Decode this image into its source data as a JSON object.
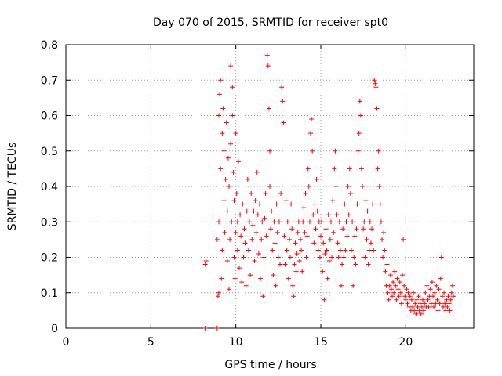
{
  "chart_data": {
    "type": "scatter",
    "title": "Day 070 of 2015, SRMTID for receiver spt0",
    "xlabel": "GPS time / hours",
    "ylabel": "SRMTID / TECUs",
    "xlim": [
      0,
      24.0
    ],
    "ylim": [
      0,
      0.8
    ],
    "x_ticks": [
      0,
      5,
      10,
      15,
      20
    ],
    "x_tick_labels": [
      "0",
      "5",
      "10",
      "15",
      "20"
    ],
    "y_ticks": [
      0,
      0.1,
      0.2,
      0.3,
      0.4,
      0.5,
      0.6,
      0.7,
      0.8
    ],
    "y_tick_labels": [
      "0",
      "0.1",
      "0.2",
      "0.3",
      "0.4",
      "0.5",
      "0.6",
      "0.7",
      "0.8"
    ],
    "grid": true,
    "marker": "plus",
    "color": "#ff0000",
    "series": [
      {
        "name": "spt0",
        "points": [
          [
            8.2,
            0.0
          ],
          [
            8.2,
            0.18
          ],
          [
            8.25,
            0.19
          ],
          [
            8.9,
            0.0
          ],
          [
            8.9,
            0.25
          ],
          [
            8.95,
            0.09
          ],
          [
            9.0,
            0.1
          ],
          [
            9.0,
            0.3
          ],
          [
            9.0,
            0.6
          ],
          [
            9.05,
            0.66
          ],
          [
            9.1,
            0.7
          ],
          [
            9.1,
            0.45
          ],
          [
            9.15,
            0.14
          ],
          [
            9.2,
            0.22
          ],
          [
            9.2,
            0.55
          ],
          [
            9.25,
            0.62
          ],
          [
            9.3,
            0.5
          ],
          [
            9.3,
            0.36
          ],
          [
            9.35,
            0.27
          ],
          [
            9.4,
            0.42
          ],
          [
            9.45,
            0.58
          ],
          [
            9.5,
            0.19
          ],
          [
            9.5,
            0.33
          ],
          [
            9.55,
            0.48
          ],
          [
            9.6,
            0.4
          ],
          [
            9.6,
            0.11
          ],
          [
            9.65,
            0.25
          ],
          [
            9.7,
            0.74
          ],
          [
            9.7,
            0.52
          ],
          [
            9.75,
            0.3
          ],
          [
            9.8,
            0.68
          ],
          [
            9.8,
            0.6
          ],
          [
            9.85,
            0.44
          ],
          [
            9.9,
            0.2
          ],
          [
            9.9,
            0.36
          ],
          [
            9.95,
            0.14
          ],
          [
            10.0,
            0.27
          ],
          [
            10.0,
            0.55
          ],
          [
            10.05,
            0.38
          ],
          [
            10.1,
            0.22
          ],
          [
            10.1,
            0.3
          ],
          [
            10.15,
            0.47
          ],
          [
            10.2,
            0.17
          ],
          [
            10.25,
            0.32
          ],
          [
            10.3,
            0.26
          ],
          [
            10.35,
            0.13
          ],
          [
            10.4,
            0.35
          ],
          [
            10.45,
            0.2
          ],
          [
            10.5,
            0.28
          ],
          [
            10.55,
            0.24
          ],
          [
            10.6,
            0.12
          ],
          [
            10.65,
            0.33
          ],
          [
            10.7,
            0.42
          ],
          [
            10.75,
            0.22
          ],
          [
            10.8,
            0.3
          ],
          [
            10.85,
            0.15
          ],
          [
            10.9,
            0.38
          ],
          [
            10.95,
            0.25
          ],
          [
            11.0,
            0.29
          ],
          [
            11.05,
            0.33
          ],
          [
            11.1,
            0.19
          ],
          [
            11.15,
            0.36
          ],
          [
            11.2,
            0.27
          ],
          [
            11.25,
            0.44
          ],
          [
            11.3,
            0.32
          ],
          [
            11.35,
            0.21
          ],
          [
            11.4,
            0.35
          ],
          [
            11.45,
            0.14
          ],
          [
            11.5,
            0.25
          ],
          [
            11.55,
            0.3
          ],
          [
            11.6,
            0.09
          ],
          [
            11.65,
            0.2
          ],
          [
            11.7,
            0.31
          ],
          [
            11.75,
            0.38
          ],
          [
            11.8,
            0.26
          ],
          [
            11.85,
            0.77
          ],
          [
            11.9,
            0.74
          ],
          [
            11.95,
            0.62
          ],
          [
            12.0,
            0.5
          ],
          [
            12.0,
            0.4
          ],
          [
            12.05,
            0.28
          ],
          [
            12.1,
            0.33
          ],
          [
            12.15,
            0.22
          ],
          [
            12.2,
            0.15
          ],
          [
            12.25,
            0.3
          ],
          [
            12.3,
            0.24
          ],
          [
            12.35,
            0.12
          ],
          [
            12.4,
            0.35
          ],
          [
            12.45,
            0.27
          ],
          [
            12.5,
            0.2
          ],
          [
            12.55,
            0.3
          ],
          [
            12.6,
            0.18
          ],
          [
            12.65,
            0.38
          ],
          [
            12.7,
            0.68
          ],
          [
            12.75,
            0.64
          ],
          [
            12.8,
            0.58
          ],
          [
            12.85,
            0.26
          ],
          [
            12.9,
            0.18
          ],
          [
            12.95,
            0.36
          ],
          [
            13.0,
            0.22
          ],
          [
            13.05,
            0.3
          ],
          [
            13.1,
            0.14
          ],
          [
            13.15,
            0.25
          ],
          [
            13.2,
            0.2
          ],
          [
            13.25,
            0.35
          ],
          [
            13.3,
            0.28
          ],
          [
            13.35,
            0.12
          ],
          [
            13.4,
            0.09
          ],
          [
            13.45,
            0.18
          ],
          [
            13.5,
            0.24
          ],
          [
            13.55,
            0.16
          ],
          [
            13.6,
            0.21
          ],
          [
            13.65,
            0.27
          ],
          [
            13.7,
            0.3
          ],
          [
            13.75,
            0.19
          ],
          [
            13.8,
            0.25
          ],
          [
            13.85,
            0.22
          ],
          [
            13.9,
            0.16
          ],
          [
            13.95,
            0.3
          ],
          [
            14.0,
            0.34
          ],
          [
            14.05,
            0.27
          ],
          [
            14.1,
            0.38
          ],
          [
            14.15,
            0.2
          ],
          [
            14.2,
            0.26
          ],
          [
            14.25,
            0.45
          ],
          [
            14.3,
            0.4
          ],
          [
            14.35,
            0.3
          ],
          [
            14.4,
            0.55
          ],
          [
            14.45,
            0.59
          ],
          [
            14.5,
            0.5
          ],
          [
            14.55,
            0.32
          ],
          [
            14.6,
            0.24
          ],
          [
            14.65,
            0.35
          ],
          [
            14.7,
            0.28
          ],
          [
            14.75,
            0.42
          ],
          [
            14.8,
            0.33
          ],
          [
            14.85,
            0.22
          ],
          [
            14.9,
            0.3
          ],
          [
            14.95,
            0.2
          ],
          [
            15.0,
            0.26
          ],
          [
            15.05,
            0.3
          ],
          [
            15.1,
            0.16
          ],
          [
            15.15,
            0.24
          ],
          [
            15.2,
            0.08
          ],
          [
            15.25,
            0.21
          ],
          [
            15.3,
            0.28
          ],
          [
            15.35,
            0.22
          ],
          [
            15.4,
            0.14
          ],
          [
            15.45,
            0.32
          ],
          [
            15.5,
            0.19
          ],
          [
            15.55,
            0.25
          ],
          [
            15.6,
            0.3
          ],
          [
            15.65,
            0.2
          ],
          [
            15.7,
            0.36
          ],
          [
            15.75,
            0.27
          ],
          [
            15.8,
            0.45
          ],
          [
            15.85,
            0.5
          ],
          [
            15.9,
            0.4
          ],
          [
            15.95,
            0.32
          ],
          [
            16.0,
            0.24
          ],
          [
            16.05,
            0.2
          ],
          [
            16.1,
            0.3
          ],
          [
            16.15,
            0.22
          ],
          [
            16.2,
            0.12
          ],
          [
            16.25,
            0.18
          ],
          [
            16.3,
            0.28
          ],
          [
            16.35,
            0.2
          ],
          [
            16.4,
            0.35
          ],
          [
            16.45,
            0.22
          ],
          [
            16.5,
            0.3
          ],
          [
            16.55,
            0.26
          ],
          [
            16.6,
            0.4
          ],
          [
            16.65,
            0.32
          ],
          [
            16.7,
            0.45
          ],
          [
            16.75,
            0.38
          ],
          [
            16.8,
            0.22
          ],
          [
            16.85,
            0.3
          ],
          [
            16.9,
            0.12
          ],
          [
            16.95,
            0.2
          ],
          [
            17.0,
            0.26
          ],
          [
            17.05,
            0.18
          ],
          [
            17.1,
            0.28
          ],
          [
            17.15,
            0.35
          ],
          [
            17.2,
            0.5
          ],
          [
            17.25,
            0.55
          ],
          [
            17.3,
            0.64
          ],
          [
            17.35,
            0.6
          ],
          [
            17.4,
            0.45
          ],
          [
            17.45,
            0.4
          ],
          [
            17.5,
            0.28
          ],
          [
            17.55,
            0.3
          ],
          [
            17.6,
            0.2
          ],
          [
            17.65,
            0.36
          ],
          [
            17.7,
            0.25
          ],
          [
            17.75,
            0.33
          ],
          [
            17.8,
            0.18
          ],
          [
            17.85,
            0.22
          ],
          [
            17.9,
            0.3
          ],
          [
            17.95,
            0.24
          ],
          [
            18.0,
            0.28
          ],
          [
            18.05,
            0.35
          ],
          [
            18.1,
            0.22
          ],
          [
            18.15,
            0.7
          ],
          [
            18.2,
            0.69
          ],
          [
            18.25,
            0.68
          ],
          [
            18.3,
            0.62
          ],
          [
            18.35,
            0.45
          ],
          [
            18.4,
            0.5
          ],
          [
            18.45,
            0.4
          ],
          [
            18.5,
            0.35
          ],
          [
            18.55,
            0.3
          ],
          [
            18.6,
            0.25
          ],
          [
            18.65,
            0.2
          ],
          [
            18.7,
            0.27
          ],
          [
            18.75,
            0.22
          ],
          [
            18.8,
            0.16
          ],
          [
            18.85,
            0.12
          ],
          [
            18.9,
            0.18
          ],
          [
            18.95,
            0.1
          ],
          [
            19.0,
            0.08
          ],
          [
            19.05,
            0.12
          ],
          [
            19.1,
            0.15
          ],
          [
            19.15,
            0.11
          ],
          [
            19.2,
            0.09
          ],
          [
            19.25,
            0.13
          ],
          [
            19.3,
            0.1
          ],
          [
            19.35,
            0.16
          ],
          [
            19.4,
            0.12
          ],
          [
            19.45,
            0.08
          ],
          [
            19.5,
            0.14
          ],
          [
            19.55,
            0.11
          ],
          [
            19.6,
            0.09
          ],
          [
            19.65,
            0.13
          ],
          [
            19.7,
            0.1
          ],
          [
            19.75,
            0.07
          ],
          [
            19.8,
            0.15
          ],
          [
            19.85,
            0.25
          ],
          [
            19.9,
            0.12
          ],
          [
            19.95,
            0.09
          ],
          [
            20.0,
            0.08
          ],
          [
            20.05,
            0.11
          ],
          [
            20.1,
            0.07
          ],
          [
            20.15,
            0.1
          ],
          [
            20.2,
            0.06
          ],
          [
            20.25,
            0.09
          ],
          [
            20.3,
            0.05
          ],
          [
            20.35,
            0.08
          ],
          [
            20.4,
            0.06
          ],
          [
            20.45,
            0.1
          ],
          [
            20.5,
            0.05
          ],
          [
            20.55,
            0.07
          ],
          [
            20.6,
            0.04
          ],
          [
            20.65,
            0.08
          ],
          [
            20.7,
            0.06
          ],
          [
            20.75,
            0.09
          ],
          [
            20.8,
            0.05
          ],
          [
            20.85,
            0.07
          ],
          [
            20.9,
            0.04
          ],
          [
            20.95,
            0.06
          ],
          [
            21.0,
            0.08
          ],
          [
            21.05,
            0.05
          ],
          [
            21.1,
            0.07
          ],
          [
            21.15,
            0.1
          ],
          [
            21.2,
            0.06
          ],
          [
            21.25,
            0.12
          ],
          [
            21.3,
            0.08
          ],
          [
            21.35,
            0.06
          ],
          [
            21.4,
            0.09
          ],
          [
            21.45,
            0.11
          ],
          [
            21.5,
            0.07
          ],
          [
            21.55,
            0.13
          ],
          [
            21.6,
            0.09
          ],
          [
            21.65,
            0.06
          ],
          [
            21.7,
            0.1
          ],
          [
            21.75,
            0.07
          ],
          [
            21.8,
            0.12
          ],
          [
            21.85,
            0.08
          ],
          [
            21.9,
            0.05
          ],
          [
            21.95,
            0.11
          ],
          [
            22.0,
            0.07
          ],
          [
            22.05,
            0.14
          ],
          [
            22.1,
            0.2
          ],
          [
            22.15,
            0.09
          ],
          [
            22.2,
            0.06
          ],
          [
            22.25,
            0.1
          ],
          [
            22.3,
            0.07
          ],
          [
            22.35,
            0.05
          ],
          [
            22.4,
            0.08
          ],
          [
            22.45,
            0.06
          ],
          [
            22.5,
            0.09
          ],
          [
            22.55,
            0.07
          ],
          [
            22.6,
            0.05
          ],
          [
            22.65,
            0.08
          ],
          [
            22.7,
            0.1
          ],
          [
            22.75,
            0.12
          ],
          [
            22.8,
            0.09
          ]
        ]
      }
    ]
  }
}
